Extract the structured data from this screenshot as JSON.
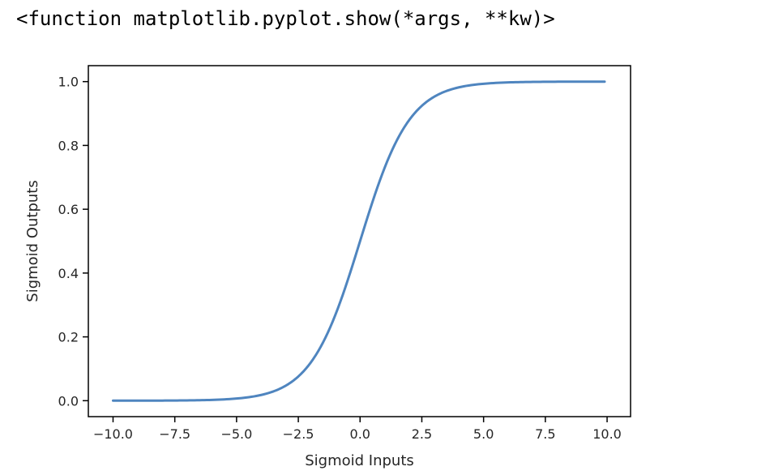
{
  "output_repr": "<function matplotlib.pyplot.show(*args, **kw)>",
  "chart_data": {
    "type": "line",
    "xlabel": "Sigmoid Inputs",
    "ylabel": "Sigmoid Outputs",
    "xlim": [
      -11.0,
      10.95
    ],
    "ylim": [
      -0.05,
      1.05
    ],
    "xticks": [
      -10.0,
      -7.5,
      -5.0,
      -2.5,
      0.0,
      2.5,
      5.0,
      7.5,
      10.0
    ],
    "xtick_labels": [
      "−10.0",
      "−7.5",
      "−5.0",
      "−2.5",
      "0.0",
      "2.5",
      "5.0",
      "7.5",
      "10.0"
    ],
    "yticks": [
      0.0,
      0.2,
      0.4,
      0.6,
      0.8,
      1.0
    ],
    "ytick_labels": [
      "0.0",
      "0.2",
      "0.4",
      "0.6",
      "0.8",
      "1.0"
    ],
    "grid": false,
    "series": [
      {
        "function": "sigmoid",
        "x_start": -10.0,
        "x_end": 9.9,
        "x_step": 0.1,
        "color": "#4f85bf"
      }
    ]
  }
}
